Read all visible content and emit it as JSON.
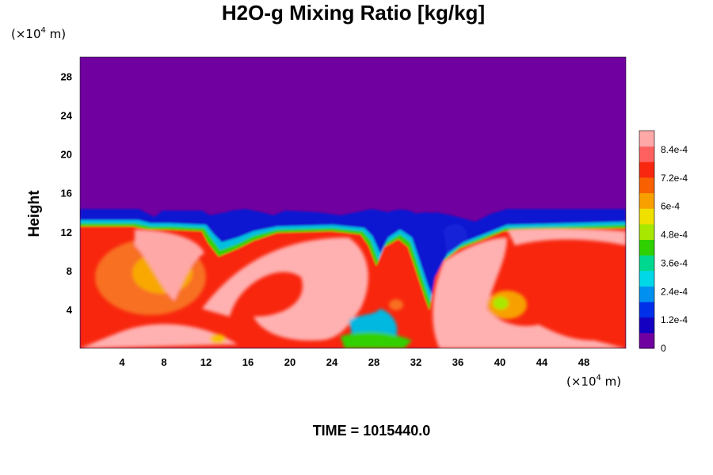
{
  "chart_data": {
    "type": "heatmap",
    "title": "H2O-g Mixing Ratio [kg/kg]",
    "xlabel": "",
    "ylabel": "Height",
    "x_unit_base": "(×10",
    "x_unit_exp": "4",
    "x_unit_tail": " m)",
    "y_unit_base": "(×10",
    "y_unit_exp": "4",
    "y_unit_tail": " m)",
    "xlim": [
      0,
      52
    ],
    "ylim": [
      0,
      30
    ],
    "x_ticks": [
      4,
      8,
      12,
      16,
      20,
      24,
      28,
      32,
      36,
      40,
      44,
      48
    ],
    "y_ticks": [
      4,
      8,
      12,
      16,
      20,
      24,
      28
    ],
    "top_of_moist_layer_height": 14,
    "colorbar": {
      "min": 0,
      "max": 0.00092,
      "tick_values": [
        0,
        0.00012,
        0.00024,
        0.00036,
        0.00048,
        0.0006,
        0.00072,
        0.00084
      ],
      "tick_labels": [
        "0",
        "1.2e-4",
        "2.4e-4",
        "3.6e-4",
        "4.8e-4",
        "6e-4",
        "7.2e-4",
        "8.4e-4"
      ],
      "colors": [
        "#7000a0",
        "#1400c0",
        "#0030e8",
        "#0090f0",
        "#00d8e8",
        "#00d890",
        "#30d000",
        "#a8e800",
        "#f0e000",
        "#f8a000",
        "#f86000",
        "#f82810",
        "#ff6060",
        "#ffa8a8"
      ]
    },
    "grid": false,
    "legend": "colorbar-right"
  },
  "footer": {
    "time_text": "TIME = 1015440.0"
  }
}
